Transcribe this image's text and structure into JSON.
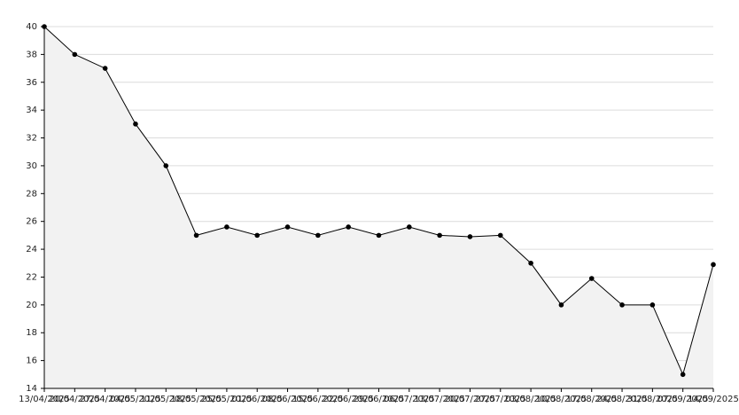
{
  "chart_data": {
    "type": "area",
    "categories": [
      "13/04/2025",
      "20/04/2025",
      "27/04/2025",
      "04/05/2025",
      "11/05/2025",
      "18/05/2025",
      "25/05/2025",
      "01/06/2025",
      "08/06/2025",
      "15/06/2025",
      "22/06/2025",
      "29/06/2025",
      "06/07/2025",
      "13/07/2025",
      "20/07/2025",
      "27/07/2025",
      "03/08/2025",
      "10/08/2025",
      "17/08/2025",
      "24/08/2025",
      "31/08/2025",
      "07/09/2025",
      "14/09/2025"
    ],
    "values": [
      40,
      38,
      37,
      33,
      30,
      25,
      25.6,
      25,
      25.6,
      25,
      25.6,
      25,
      25.6,
      25,
      24.9,
      25,
      23,
      20,
      21.9,
      20,
      20,
      15,
      22.9
    ],
    "color": "#000000",
    "fill": "#f2f2f2",
    "ylim": [
      14,
      40
    ],
    "yticks": [
      14,
      16,
      18,
      20,
      22,
      24,
      26,
      28,
      30,
      32,
      34,
      36,
      38,
      40
    ],
    "grid": true
  }
}
